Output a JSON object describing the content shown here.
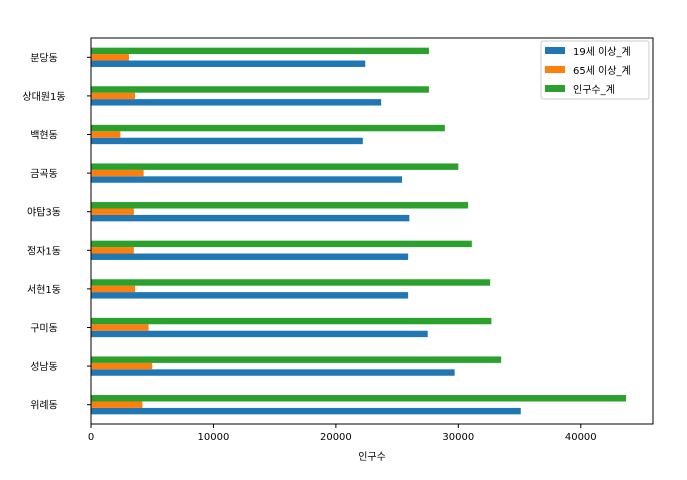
{
  "chart_data": {
    "type": "bar",
    "orientation": "horizontal",
    "categories": [
      "위례동",
      "성남동",
      "구미동",
      "서현1동",
      "정자1동",
      "야탑3동",
      "금곡동",
      "백현동",
      "상대원1동",
      "분당동"
    ],
    "series": [
      {
        "name": "19세 이상_계",
        "color": "#1f77b4",
        "values": [
          35100,
          29700,
          27500,
          25900,
          25900,
          26000,
          25400,
          22200,
          23700,
          22400
        ]
      },
      {
        "name": "65세 이상_계",
        "color": "#ff7f0e",
        "values": [
          4200,
          5000,
          4700,
          3600,
          3500,
          3500,
          4300,
          2400,
          3600,
          3100
        ]
      },
      {
        "name": "인구수_계",
        "color": "#2ca02c",
        "values": [
          43700,
          33500,
          32700,
          32600,
          31100,
          30800,
          30000,
          28900,
          27600,
          27600
        ]
      }
    ],
    "xlabel": "인구수",
    "ylabel": "",
    "xlim": [
      0,
      45900
    ],
    "xticks": [
      0,
      10000,
      20000,
      30000,
      40000
    ],
    "grid": false,
    "legend_position": "top-right"
  }
}
